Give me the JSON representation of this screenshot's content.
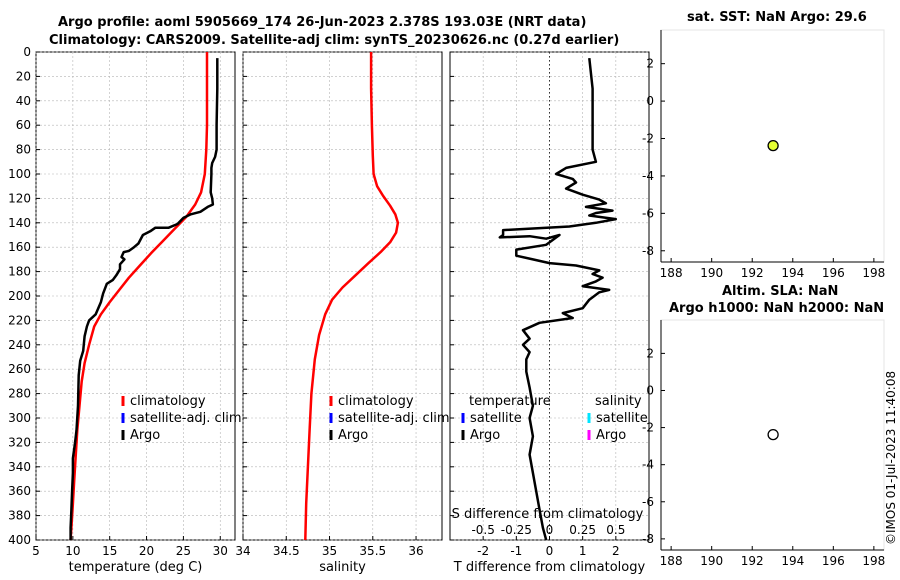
{
  "header": {
    "title_line1": "Argo profile: aoml 5905669_174 26-Jun-2023 2.378S 193.03E (NRT data)",
    "title_line2": "Climatology: CARS2009. Satellite-adj clim: synTS_20230626.nc (0.27d earlier)",
    "sst_title": "sat. SST: NaN Argo: 29.6",
    "sla_title_line1": "Altim. SLA: NaN",
    "sla_title_line2": "Argo h1000: NaN h2000: NaN",
    "watermark": "©IMOS 01-Jul-2023 11:40:08"
  },
  "colors": {
    "climatology": "#ff0000",
    "satellite_adj": "#0000ff",
    "argo": "#000000",
    "salinity_satellite": "#00e5ff",
    "salinity_argo": "#ff00ff",
    "sst_marker": "#e6ff33"
  },
  "chart_data": [
    {
      "type": "line",
      "name": "temperature-profile",
      "xlabel": "temperature (deg C)",
      "ylabel": "",
      "xlim": [
        5,
        32
      ],
      "ylim": [
        0,
        400
      ],
      "y_reversed": true,
      "xticks": [
        5,
        10,
        15,
        20,
        25,
        30
      ],
      "yticks": [
        0,
        20,
        40,
        60,
        80,
        100,
        120,
        140,
        160,
        180,
        200,
        220,
        240,
        260,
        280,
        300,
        320,
        340,
        360,
        380,
        400
      ],
      "legend": [
        "climatology",
        "satellite-adj. clim",
        "Argo"
      ],
      "series": [
        {
          "name": "climatology",
          "color": "#ff0000",
          "points": [
            [
              28.2,
              0
            ],
            [
              28.2,
              20
            ],
            [
              28.2,
              40
            ],
            [
              28.2,
              60
            ],
            [
              28.1,
              80
            ],
            [
              27.9,
              100
            ],
            [
              27.4,
              115
            ],
            [
              26.6,
              125
            ],
            [
              25.4,
              135
            ],
            [
              23.8,
              145
            ],
            [
              22.2,
              155
            ],
            [
              20.6,
              165
            ],
            [
              19.1,
              175
            ],
            [
              17.6,
              185
            ],
            [
              16.3,
              195
            ],
            [
              15.0,
              205
            ],
            [
              13.8,
              215
            ],
            [
              12.9,
              225
            ],
            [
              12.2,
              240
            ],
            [
              11.6,
              255
            ],
            [
              11.2,
              270
            ],
            [
              10.9,
              290
            ],
            [
              10.6,
              310
            ],
            [
              10.4,
              330
            ],
            [
              10.2,
              350
            ],
            [
              10.0,
              370
            ],
            [
              9.8,
              390
            ],
            [
              9.7,
              400
            ]
          ]
        },
        {
          "name": "Argo",
          "color": "#000000",
          "points": [
            [
              29.6,
              5
            ],
            [
              29.6,
              30
            ],
            [
              29.5,
              60
            ],
            [
              29.5,
              80
            ],
            [
              29.3,
              86
            ],
            [
              28.9,
              91
            ],
            [
              28.8,
              95
            ],
            [
              28.8,
              100
            ],
            [
              28.7,
              115
            ],
            [
              28.9,
              120
            ],
            [
              29.0,
              125
            ],
            [
              28.3,
              127
            ],
            [
              27.3,
              131
            ],
            [
              26.0,
              133
            ],
            [
              25.0,
              136
            ],
            [
              24.2,
              141
            ],
            [
              23.0,
              144
            ],
            [
              21.2,
              144
            ],
            [
              20.5,
              147
            ],
            [
              19.5,
              150
            ],
            [
              18.9,
              157
            ],
            [
              18.3,
              160
            ],
            [
              17.6,
              163
            ],
            [
              16.9,
              164
            ],
            [
              16.6,
              168
            ],
            [
              17.0,
              170
            ],
            [
              16.4,
              174
            ],
            [
              16.4,
              178
            ],
            [
              15.9,
              183
            ],
            [
              15.4,
              187
            ],
            [
              14.6,
              190
            ],
            [
              14.1,
              198
            ],
            [
              13.8,
              205
            ],
            [
              13.1,
              215
            ],
            [
              12.2,
              220
            ],
            [
              11.9,
              225
            ],
            [
              11.6,
              233
            ],
            [
              11.4,
              245
            ],
            [
              11.0,
              253
            ],
            [
              10.8,
              265
            ],
            [
              10.7,
              290
            ],
            [
              10.5,
              310
            ],
            [
              10.3,
              320
            ],
            [
              10.0,
              333
            ],
            [
              10.0,
              345
            ],
            [
              9.9,
              360
            ],
            [
              9.8,
              375
            ],
            [
              9.7,
              390
            ],
            [
              9.7,
              400
            ]
          ]
        }
      ]
    },
    {
      "type": "line",
      "name": "salinity-profile",
      "xlabel": "salinity",
      "xlim": [
        34,
        36.3
      ],
      "ylim": [
        0,
        400
      ],
      "y_reversed": true,
      "xticks": [
        34,
        34.5,
        35,
        35.5,
        36
      ],
      "legend": [
        "climatology",
        "satellite-adj. clim",
        "Argo"
      ],
      "series": [
        {
          "name": "climatology",
          "color": "#ff0000",
          "points": [
            [
              35.48,
              0
            ],
            [
              35.48,
              30
            ],
            [
              35.49,
              60
            ],
            [
              35.5,
              85
            ],
            [
              35.51,
              100
            ],
            [
              35.55,
              110
            ],
            [
              35.62,
              118
            ],
            [
              35.7,
              126
            ],
            [
              35.76,
              133
            ],
            [
              35.79,
              140
            ],
            [
              35.77,
              148
            ],
            [
              35.7,
              156
            ],
            [
              35.59,
              164
            ],
            [
              35.45,
              173
            ],
            [
              35.3,
              183
            ],
            [
              35.15,
              193
            ],
            [
              35.03,
              203
            ],
            [
              34.95,
              215
            ],
            [
              34.88,
              232
            ],
            [
              34.83,
              252
            ],
            [
              34.79,
              280
            ],
            [
              34.77,
              310
            ],
            [
              34.75,
              340
            ],
            [
              34.73,
              370
            ],
            [
              34.72,
              400
            ]
          ]
        }
      ]
    },
    {
      "type": "line",
      "name": "temperature-difference-profile",
      "xlabel": "T difference from climatology",
      "top_xlabel": "S difference from climatology",
      "xlim": [
        -3,
        3
      ],
      "ylim": [
        0,
        400
      ],
      "y_reversed": true,
      "xticks": [
        -2,
        -1,
        0,
        1,
        2
      ],
      "top_xticks": [
        "-0.5",
        "-0.25",
        "0",
        "0.25",
        "0.5"
      ],
      "legend_temperature_header": "temperature",
      "legend_salinity_header": "salinity",
      "legend_temperature": [
        "satellite",
        "Argo"
      ],
      "legend_salinity": [
        "satellite",
        "Argo"
      ],
      "series": [
        {
          "name": "Argo T diff",
          "color": "#000000",
          "points": [
            [
              1.2,
              5
            ],
            [
              1.3,
              30
            ],
            [
              1.3,
              60
            ],
            [
              1.3,
              80
            ],
            [
              1.4,
              90
            ],
            [
              0.5,
              95
            ],
            [
              0.2,
              100
            ],
            [
              0.7,
              104
            ],
            [
              0.8,
              107
            ],
            [
              0.5,
              112
            ],
            [
              1.0,
              117
            ],
            [
              1.5,
              121
            ],
            [
              1.7,
              124
            ],
            [
              1.1,
              127
            ],
            [
              1.9,
              130
            ],
            [
              1.4,
              132
            ],
            [
              1.2,
              134
            ],
            [
              2.0,
              137
            ],
            [
              1.4,
              140
            ],
            [
              0.6,
              143
            ],
            [
              -1.4,
              146
            ],
            [
              -1.4,
              150
            ],
            [
              -1.5,
              152
            ],
            [
              -0.6,
              151
            ],
            [
              -0.1,
              153
            ],
            [
              0.3,
              150
            ],
            [
              -0.1,
              158
            ],
            [
              -1.0,
              162
            ],
            [
              -1.0,
              167
            ],
            [
              -0.5,
              170
            ],
            [
              0.0,
              173
            ],
            [
              0.8,
              175
            ],
            [
              1.5,
              179
            ],
            [
              1.3,
              182
            ],
            [
              1.6,
              185
            ],
            [
              1.4,
              188
            ],
            [
              1.0,
              192
            ],
            [
              1.8,
              195
            ],
            [
              1.5,
              197
            ],
            [
              1.2,
              203
            ],
            [
              1.0,
              210
            ],
            [
              0.4,
              214
            ],
            [
              0.7,
              218
            ],
            [
              -0.3,
              222
            ],
            [
              -0.8,
              228
            ],
            [
              -0.6,
              235
            ],
            [
              -0.8,
              240
            ],
            [
              -0.6,
              246
            ],
            [
              -0.7,
              252
            ],
            [
              -0.7,
              262
            ],
            [
              -0.6,
              275
            ],
            [
              -0.5,
              290
            ],
            [
              -0.6,
              300
            ],
            [
              -0.5,
              315
            ],
            [
              -0.6,
              330
            ],
            [
              -0.5,
              345
            ],
            [
              -0.4,
              360
            ],
            [
              -0.3,
              375
            ],
            [
              -0.2,
              390
            ],
            [
              -0.1,
              400
            ]
          ]
        }
      ]
    },
    {
      "type": "scatter",
      "name": "sst-map",
      "title": "sat. SST: NaN Argo: 29.6",
      "xlim": [
        187.5,
        198.5
      ],
      "ylim": [
        -8.6,
        3.8
      ],
      "xticks": [
        188,
        190,
        192,
        194,
        196,
        198
      ],
      "yticks": [
        2,
        0,
        -2,
        -4,
        -6,
        -8
      ],
      "points": [
        {
          "x": 193.03,
          "y": -2.378,
          "color": "#e6ff33"
        }
      ]
    },
    {
      "type": "scatter",
      "name": "sla-map",
      "title": "Altim. SLA: NaN / Argo h1000: NaN h2000: NaN",
      "xlim": [
        187.5,
        198.5
      ],
      "ylim": [
        -8.6,
        3.8
      ],
      "xticks": [
        188,
        190,
        192,
        194,
        196,
        198
      ],
      "yticks": [
        2,
        0,
        -2,
        -4,
        -6,
        -8
      ],
      "points": [
        {
          "x": 193.03,
          "y": -2.378,
          "color": "#ffffff"
        }
      ]
    }
  ]
}
